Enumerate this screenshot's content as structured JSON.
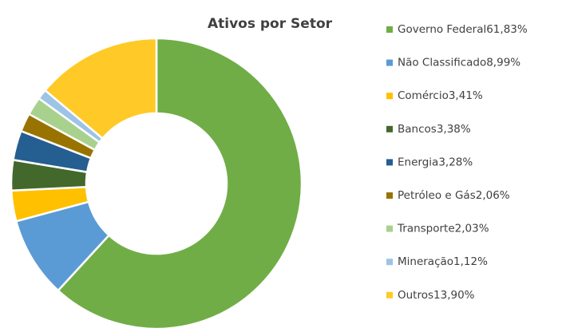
{
  "chart_data": {
    "type": "pie",
    "title": "Ativos por Setor",
    "categories": [
      "Governo Federal",
      "Não Classificado",
      "Comércio",
      "Bancos",
      "Energia",
      "Petróleo e Gás",
      "Transporte",
      "Mineração",
      "Outros"
    ],
    "values": [
      61.83,
      8.99,
      3.41,
      3.38,
      3.28,
      2.06,
      2.03,
      1.12,
      13.9
    ],
    "value_labels": [
      "61,83%",
      "8,99%",
      "3,41%",
      "3,38%",
      "3,28%",
      "2,06%",
      "2,03%",
      "1,12%",
      "13,90%"
    ],
    "colors": [
      "#70ad47",
      "#5b9bd5",
      "#ffc000",
      "#43682b",
      "#255e91",
      "#997300",
      "#a9d18e",
      "#9dc3e6",
      "#ffca28"
    ],
    "legend": "right"
  }
}
